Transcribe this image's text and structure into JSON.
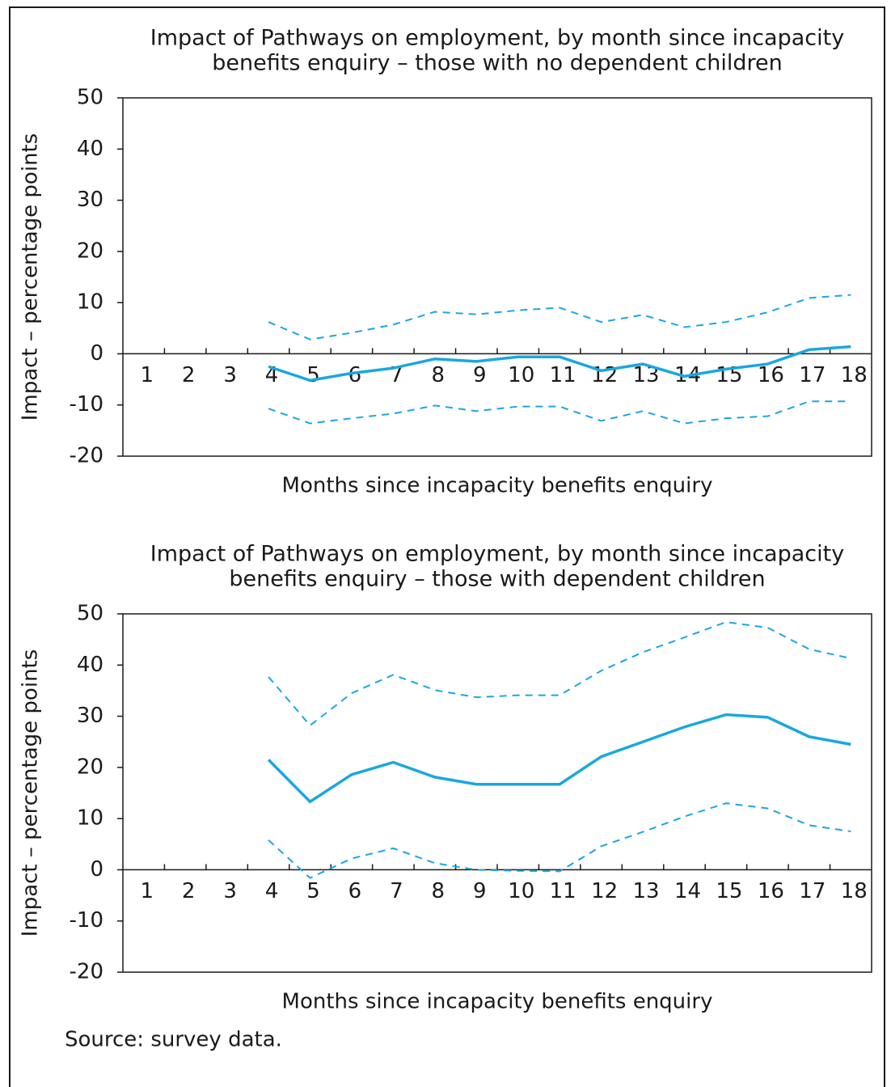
{
  "chart_data": [
    {
      "type": "line",
      "title": [
        "Impact of Pathways on employment, by month since incapacity",
        "benefits enquiry – those with no dependent children"
      ],
      "x_label": "Months since incapacity benefits enquiry",
      "y_label": "Impact – percentage points",
      "categories": [
        "1",
        "2",
        "3",
        "4",
        "5",
        "6",
        "7",
        "8",
        "9",
        "10",
        "11",
        "12",
        "13",
        "14",
        "15",
        "16",
        "17",
        "18"
      ],
      "series": [
        {
          "color": "#1aa7e0",
          "style": "solid",
          "values": [
            null,
            null,
            null,
            -2.5,
            -5.2,
            -3.8,
            -2.8,
            -1,
            -1.5,
            -0.6,
            -0.6,
            -3.3,
            -2,
            -4.4,
            -3,
            -2,
            0.8,
            1.4
          ]
        },
        {
          "color": "#1aa7e0",
          "style": "dashed",
          "values": [
            null,
            null,
            null,
            6.2,
            2.8,
            4.1,
            5.7,
            8.2,
            7.7,
            8.5,
            9,
            6.2,
            7.6,
            5.2,
            6.2,
            8.1,
            10.9,
            11.5
          ]
        },
        {
          "color": "#1aa7e0",
          "style": "dashed",
          "values": [
            null,
            null,
            null,
            -10.7,
            -13.6,
            -12.6,
            -11.7,
            -10.1,
            -11.2,
            -10.3,
            -10.3,
            -13.1,
            -11.2,
            -13.6,
            -12.6,
            -12.2,
            -9.3,
            -9.3
          ]
        }
      ],
      "ylim": [
        -20,
        50
      ],
      "yticks": [
        -20,
        -10,
        0,
        10,
        20,
        30,
        40,
        50
      ]
    },
    {
      "type": "line",
      "title": [
        "Impact of Pathways on employment, by month since incapacity",
        "benefits enquiry – those with dependent children"
      ],
      "x_label": "Months since incapacity benefits enquiry",
      "y_label": "Impact – percentage points",
      "categories": [
        "1",
        "2",
        "3",
        "4",
        "5",
        "6",
        "7",
        "8",
        "9",
        "10",
        "11",
        "12",
        "13",
        "14",
        "15",
        "16",
        "17",
        "18"
      ],
      "series": [
        {
          "color": "#1aa7e0",
          "style": "solid",
          "values": [
            null,
            null,
            null,
            21.5,
            13.3,
            18.6,
            21,
            18.1,
            16.7,
            16.7,
            16.7,
            22.1,
            25,
            27.9,
            30.3,
            29.8,
            26,
            24.5
          ]
        },
        {
          "color": "#1aa7e0",
          "style": "dashed",
          "values": [
            null,
            null,
            null,
            37.7,
            28.2,
            34.5,
            38.1,
            35.1,
            33.7,
            34.1,
            34.1,
            38.9,
            42.5,
            45.4,
            48.4,
            47.3,
            43.1,
            41.3
          ]
        },
        {
          "color": "#1aa7e0",
          "style": "dashed",
          "values": [
            null,
            null,
            null,
            5.8,
            -1.6,
            2.2,
            4.2,
            1.3,
            0,
            -0.2,
            -0.3,
            4.6,
            7.4,
            10.4,
            13,
            12,
            8.7,
            7.5
          ]
        }
      ],
      "ylim": [
        -20,
        50
      ],
      "yticks": [
        -20,
        -10,
        0,
        10,
        20,
        30,
        40,
        50
      ]
    }
  ],
  "source": "Source: survey data."
}
